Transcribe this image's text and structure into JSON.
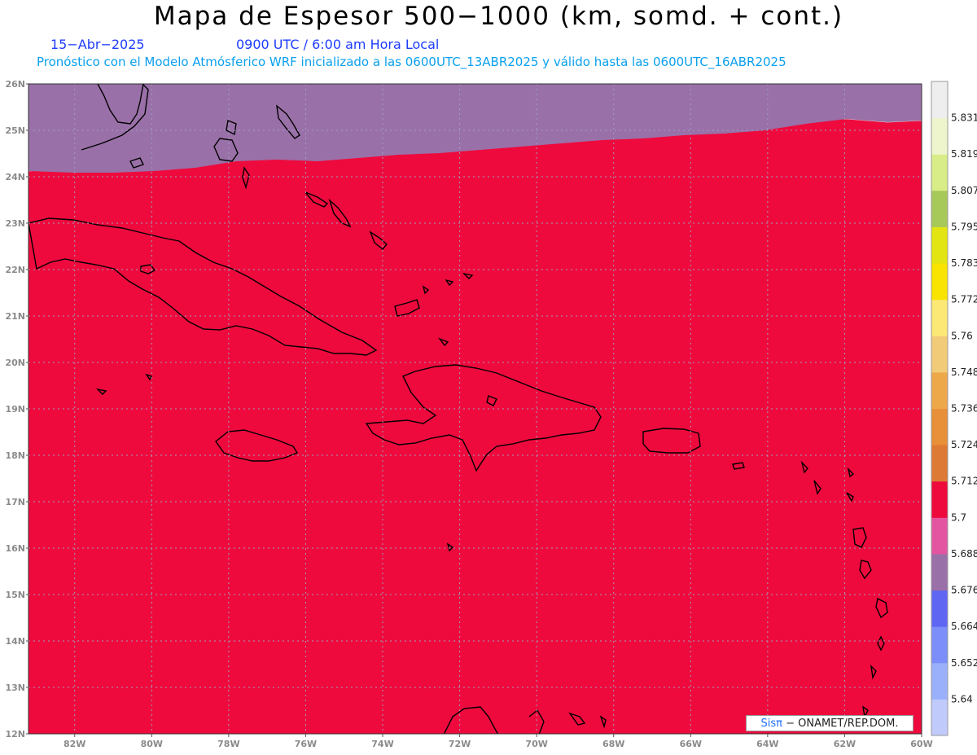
{
  "header": {
    "title": "Mapa de Espesor 500−1000 (km, somd. + cont.)",
    "date": "15−Abr−2025",
    "time": "0900 UTC / 6:00 am Hora Local",
    "subtitle": "Pronóstico con el Modelo Atmósferico WRF inicializado a las 0600UTC_13ABR2025 y válido hasta las  0600UTC_16ABR2025"
  },
  "axes": {
    "lon_labels": [
      "82W",
      "80W",
      "78W",
      "76W",
      "74W",
      "72W",
      "70W",
      "68W",
      "66W",
      "64W",
      "62W",
      "60W"
    ],
    "lat_labels": [
      "12N",
      "13N",
      "14N",
      "15N",
      "16N",
      "17N",
      "18N",
      "19N",
      "20N",
      "21N",
      "22N",
      "23N",
      "24N",
      "25N",
      "26N"
    ],
    "lon_range": [
      -83.2,
      -60
    ],
    "lat_range": [
      12,
      26
    ]
  },
  "colorbar": {
    "levels": [
      "5.64",
      "5.652",
      "5.664",
      "5.676",
      "5.688",
      "5.7",
      "5.712",
      "5.724",
      "5.736",
      "5.748",
      "5.76",
      "5.772",
      "5.783",
      "5.795",
      "5.807",
      "5.819",
      "5.831"
    ],
    "colors": [
      "#c0cbfc",
      "#9bb0fb",
      "#7b8ef9",
      "#5f66f2",
      "#9a70a8",
      "#e455a1",
      "#ee0a3d",
      "#dc7a36",
      "#e88f3a",
      "#eda84a",
      "#f2cb78",
      "#fce874",
      "#f9e300",
      "#e3e513",
      "#a7c95a",
      "#d8ed87",
      "#eef5cc",
      "#eeeeee"
    ]
  },
  "credit": {
    "brand": "Sisπ",
    "text": "− ONAMET/REP.DOM."
  },
  "bands": [
    {
      "name": "5.676-5.688",
      "color": "#9a70a8"
    },
    {
      "name": "5.688-5.7",
      "color": "#e455a1"
    },
    {
      "name": "5.7-5.712",
      "color": "#ee0a3d"
    },
    {
      "name": "5.712-5.724",
      "color": "#dc7a36"
    },
    {
      "name": "5.724-5.736",
      "color": "#e88f3a"
    },
    {
      "name": "5.736-5.748",
      "color": "#eda84a"
    },
    {
      "name": "5.748-5.76",
      "color": "#f2cb78"
    },
    {
      "name": "5.76-5.772",
      "color": "#fce874"
    },
    {
      "name": "5.772-5.783",
      "color": "#f9e300"
    },
    {
      "name": "5.783-5.795",
      "color": "#e3e513"
    },
    {
      "name": "5.795-5.807",
      "color": "#a7c95a"
    }
  ]
}
